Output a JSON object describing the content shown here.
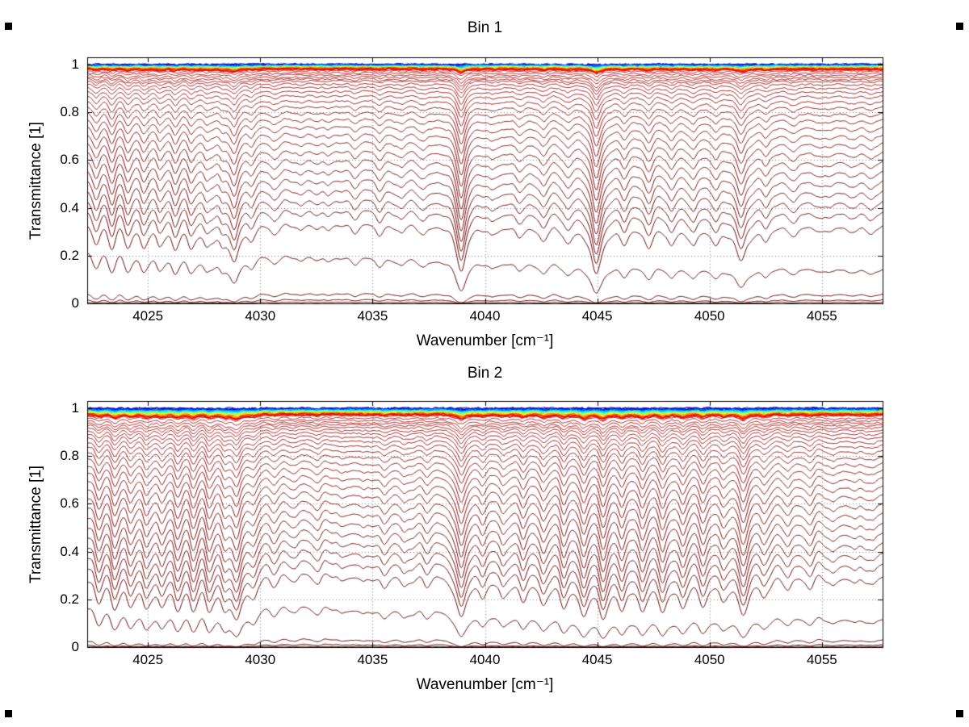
{
  "figure": {
    "type": "matlab-figure",
    "background": "#ffffff"
  },
  "chart_data": [
    {
      "type": "line",
      "title": "Bin 1",
      "xlabel": "Wavenumber [cm⁻¹]",
      "ylabel": "Transmittance [1]",
      "xlim": [
        4022.3,
        4057.7
      ],
      "ylim": [
        0,
        1.03
      ],
      "xticks": [
        4025,
        4030,
        4035,
        4040,
        4045,
        4050,
        4055
      ],
      "yticks": [
        0,
        0.2,
        0.4,
        0.6,
        0.8,
        1
      ],
      "grid": true,
      "curve_model": {
        "model": "family of transmittance spectra: T(x)=exp(-a*k(x)), a=-ln(level); k = continuum + absorption lines + shared ripple",
        "colormap": "jet",
        "cluster": {
          "count": 42,
          "level_range": [
            0.981,
            0.9995
          ]
        },
        "levels": [
          0.974,
          0.966,
          0.958,
          0.95,
          0.942,
          0.934,
          0.922,
          0.908,
          0.892,
          0.874,
          0.853,
          0.83,
          0.805,
          0.778,
          0.748,
          0.716,
          0.682,
          0.646,
          0.608,
          0.568,
          0.527,
          0.485,
          0.442,
          0.398,
          0.34,
          0.228,
          0.045,
          0.018,
          0.006
        ],
        "tilt": 0.05,
        "spread_colors": [
          "#b21e1e",
          "#580000"
        ],
        "lines": [
          [
            4022.7,
            0.22,
            0.2
          ],
          [
            4023.4,
            0.28,
            0.2
          ],
          [
            4024.1,
            0.24,
            0.2
          ],
          [
            4024.8,
            0.3,
            0.2
          ],
          [
            4025.5,
            0.26,
            0.2
          ],
          [
            4026.2,
            0.3,
            0.2
          ],
          [
            4026.9,
            0.3,
            0.2
          ],
          [
            4027.6,
            0.28,
            0.2
          ],
          [
            4028.3,
            0.3,
            0.2
          ],
          [
            4028.85,
            0.55,
            0.22
          ],
          [
            4029.6,
            0.18,
            0.2
          ],
          [
            4030.6,
            0.1,
            0.2
          ],
          [
            4031.8,
            0.08,
            0.2
          ],
          [
            4033.0,
            0.09,
            0.2
          ],
          [
            4034.2,
            0.08,
            0.2
          ],
          [
            4035.3,
            0.12,
            0.2
          ],
          [
            4036.3,
            0.1,
            0.2
          ],
          [
            4037.3,
            0.1,
            0.2
          ],
          [
            4038.95,
            0.8,
            0.22
          ],
          [
            4040.3,
            0.12,
            0.2
          ],
          [
            4041.5,
            0.15,
            0.22
          ],
          [
            4042.6,
            0.18,
            0.22
          ],
          [
            4043.7,
            0.2,
            0.22
          ],
          [
            4044.95,
            0.9,
            0.24
          ],
          [
            4046.2,
            0.22,
            0.22
          ],
          [
            4047.3,
            0.26,
            0.22
          ],
          [
            4048.3,
            0.24,
            0.22
          ],
          [
            4049.3,
            0.26,
            0.22
          ],
          [
            4050.3,
            0.22,
            0.22
          ],
          [
            4051.4,
            0.55,
            0.26
          ],
          [
            4052.5,
            0.18,
            0.22
          ],
          [
            4053.8,
            0.1,
            0.22
          ],
          [
            4055.0,
            0.08,
            0.22
          ],
          [
            4056.2,
            0.08,
            0.22
          ],
          [
            4057.2,
            0.08,
            0.22
          ]
        ],
        "ripples": [
          [
            0.018,
            0.92,
            0.7
          ],
          [
            0.014,
            1.63,
            2.3
          ],
          [
            0.011,
            0.57,
            4.1
          ]
        ],
        "left_band": {
          "amp": 0.045,
          "period": 0.74,
          "phase": 1.2,
          "fade_start": 4028.0,
          "fade_end": 4030.0
        }
      }
    },
    {
      "type": "line",
      "title": "Bin 2",
      "xlabel": "Wavenumber [cm⁻¹]",
      "ylabel": "Transmittance [1]",
      "xlim": [
        4022.3,
        4057.7
      ],
      "ylim": [
        0,
        1.03
      ],
      "xticks": [
        4025,
        4030,
        4035,
        4040,
        4045,
        4050,
        4055
      ],
      "yticks": [
        0,
        0.2,
        0.4,
        0.6,
        0.8,
        1
      ],
      "grid": true,
      "curve_model": {
        "model": "family of transmittance spectra: T(x)=exp(-a*k(x)), a=-ln(level); k = continuum + absorption lines + shared ripple",
        "colormap": "jet",
        "cluster": {
          "count": 42,
          "level_range": [
            0.975,
            0.9995
          ]
        },
        "levels": [
          0.972,
          0.963,
          0.954,
          0.946,
          0.938,
          0.929,
          0.918,
          0.906,
          0.892,
          0.876,
          0.858,
          0.838,
          0.815,
          0.79,
          0.762,
          0.732,
          0.7,
          0.666,
          0.63,
          0.592,
          0.553,
          0.513,
          0.472,
          0.43,
          0.385,
          0.33,
          0.21,
          0.042,
          0.016,
          0.005
        ],
        "tilt": 0.06,
        "spread_colors": [
          "#b21e1e",
          "#580000"
        ],
        "lines": [
          [
            4022.8,
            0.45,
            0.22
          ],
          [
            4023.5,
            0.52,
            0.22
          ],
          [
            4024.2,
            0.48,
            0.22
          ],
          [
            4024.9,
            0.55,
            0.22
          ],
          [
            4025.6,
            0.5,
            0.22
          ],
          [
            4026.3,
            0.55,
            0.22
          ],
          [
            4027.0,
            0.52,
            0.22
          ],
          [
            4027.7,
            0.55,
            0.22
          ],
          [
            4028.4,
            0.5,
            0.22
          ],
          [
            4028.95,
            0.85,
            0.25
          ],
          [
            4029.7,
            0.3,
            0.22
          ],
          [
            4030.6,
            0.15,
            0.22
          ],
          [
            4031.6,
            0.12,
            0.22
          ],
          [
            4032.6,
            0.13,
            0.22
          ],
          [
            4033.6,
            0.13,
            0.22
          ],
          [
            4034.6,
            0.16,
            0.22
          ],
          [
            4035.5,
            0.2,
            0.22
          ],
          [
            4036.4,
            0.2,
            0.22
          ],
          [
            4037.4,
            0.18,
            0.22
          ],
          [
            4038.95,
            0.85,
            0.24
          ],
          [
            4039.9,
            0.32,
            0.22
          ],
          [
            4040.8,
            0.36,
            0.22
          ],
          [
            4041.7,
            0.42,
            0.22
          ],
          [
            4042.6,
            0.46,
            0.22
          ],
          [
            4043.5,
            0.52,
            0.22
          ],
          [
            4044.4,
            0.72,
            0.23
          ],
          [
            4045.25,
            0.78,
            0.23
          ],
          [
            4046.1,
            0.58,
            0.22
          ],
          [
            4047.0,
            0.58,
            0.22
          ],
          [
            4047.9,
            0.62,
            0.23
          ],
          [
            4048.8,
            0.52,
            0.22
          ],
          [
            4049.7,
            0.46,
            0.22
          ],
          [
            4050.6,
            0.38,
            0.22
          ],
          [
            4051.5,
            0.68,
            0.26
          ],
          [
            4052.4,
            0.3,
            0.22
          ],
          [
            4053.5,
            0.2,
            0.22
          ],
          [
            4054.5,
            0.16,
            0.22
          ],
          [
            4055.5,
            0.15,
            0.22
          ],
          [
            4056.5,
            0.15,
            0.22
          ],
          [
            4057.3,
            0.14,
            0.22
          ]
        ],
        "ripples": [
          [
            0.028,
            0.88,
            0.4
          ],
          [
            0.02,
            1.45,
            1.5
          ],
          [
            0.014,
            0.61,
            3.2
          ]
        ],
        "left_band": {
          "amp": 0.06,
          "period": 0.7,
          "phase": 0.9,
          "fade_start": 4028.5,
          "fade_end": 4030.5
        }
      }
    }
  ]
}
